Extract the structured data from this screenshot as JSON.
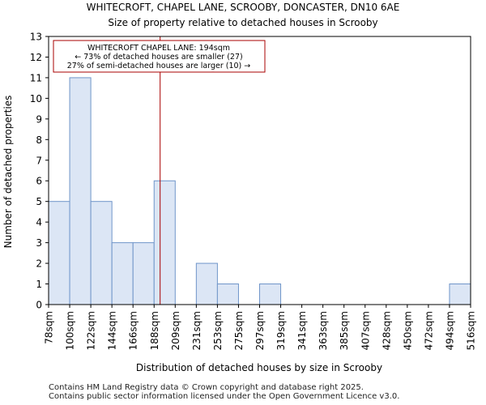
{
  "chart_data": {
    "type": "histogram",
    "title": "WHITECROFT, CHAPEL LANE, SCROOBY, DONCASTER, DN10 6AE",
    "subtitle": "Size of property relative to detached houses in Scrooby",
    "xlabel": "Distribution of detached houses by size in Scrooby",
    "ylabel": "Number of detached properties",
    "bin_edges": [
      78,
      100,
      122,
      144,
      166,
      188,
      209,
      231,
      253,
      275,
      297,
      319,
      341,
      363,
      385,
      407,
      428,
      450,
      472,
      494,
      516
    ],
    "tick_labels": [
      "78sqm",
      "100sqm",
      "122sqm",
      "144sqm",
      "166sqm",
      "188sqm",
      "209sqm",
      "231sqm",
      "253sqm",
      "275sqm",
      "297sqm",
      "319sqm",
      "341sqm",
      "363sqm",
      "385sqm",
      "407sqm",
      "428sqm",
      "450sqm",
      "472sqm",
      "494sqm",
      "516sqm"
    ],
    "values": [
      5,
      11,
      5,
      3,
      3,
      6,
      0,
      2,
      1,
      0,
      1,
      0,
      0,
      0,
      0,
      0,
      0,
      0,
      0,
      1
    ],
    "ylim": [
      0,
      13
    ],
    "yticks": [
      0,
      1,
      2,
      3,
      4,
      5,
      6,
      7,
      8,
      9,
      10,
      11,
      12,
      13
    ],
    "marker_value": 194,
    "annotation": {
      "line1": "WHITECROFT CHAPEL LANE: 194sqm",
      "line2": "← 73% of detached houses are smaller (27)",
      "line3": "27% of semi-detached houses are larger (10) →"
    },
    "colors": {
      "bar_fill": "#dce6f5",
      "bar_edge": "#6f95c9",
      "marker": "#aa0000",
      "annotation_border": "#aa0000"
    }
  },
  "footer": {
    "line1": "Contains HM Land Registry data © Crown copyright and database right 2025.",
    "line2": "Contains public sector information licensed under the Open Government Licence v3.0."
  }
}
